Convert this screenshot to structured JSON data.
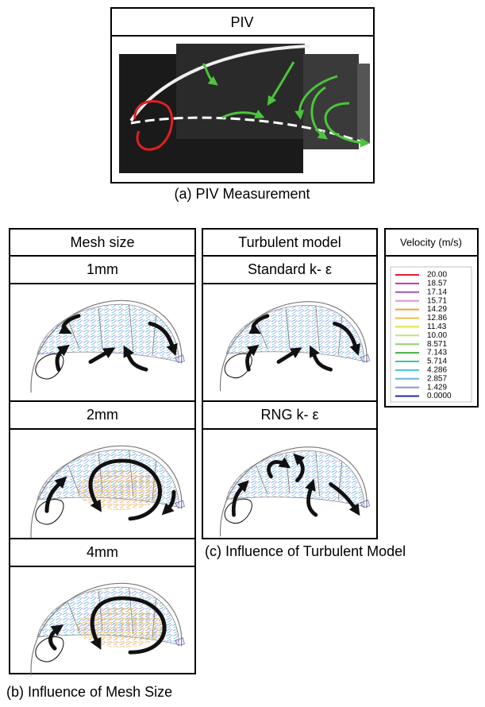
{
  "panel_a": {
    "header": "PIV",
    "caption": "(a) PIV Measurement"
  },
  "panel_b": {
    "header": "Mesh size",
    "rows": [
      "1mm",
      "2mm",
      "4mm"
    ],
    "caption": "(b) Influence of Mesh Size"
  },
  "panel_c": {
    "header": "Turbulent model",
    "rows": [
      "Standard  k- ε",
      "RNG k- ε"
    ],
    "caption": "(c) Influence of Turbulent Model"
  },
  "legend": {
    "title": "Velocity (m/s)",
    "levels": [
      {
        "label": "20.00",
        "color": "#e02028"
      },
      {
        "label": "18.57",
        "color": "#c0389c"
      },
      {
        "label": "17.14",
        "color": "#a050c0"
      },
      {
        "label": "15.71",
        "color": "#d898d8"
      },
      {
        "label": "14.29",
        "color": "#f0a040"
      },
      {
        "label": "12.86",
        "color": "#e8c040"
      },
      {
        "label": "11.43",
        "color": "#e8e040"
      },
      {
        "label": "10.00",
        "color": "#c8e070"
      },
      {
        "label": "8.571",
        "color": "#90d070"
      },
      {
        "label": "7.143",
        "color": "#40b040"
      },
      {
        "label": "5.714",
        "color": "#40c0a0"
      },
      {
        "label": "4.286",
        "color": "#40c8d8"
      },
      {
        "label": "2.857",
        "color": "#70b0e0"
      },
      {
        "label": "1.429",
        "color": "#9090e0"
      },
      {
        "label": "0.0000",
        "color": "#2030a0"
      }
    ]
  }
}
